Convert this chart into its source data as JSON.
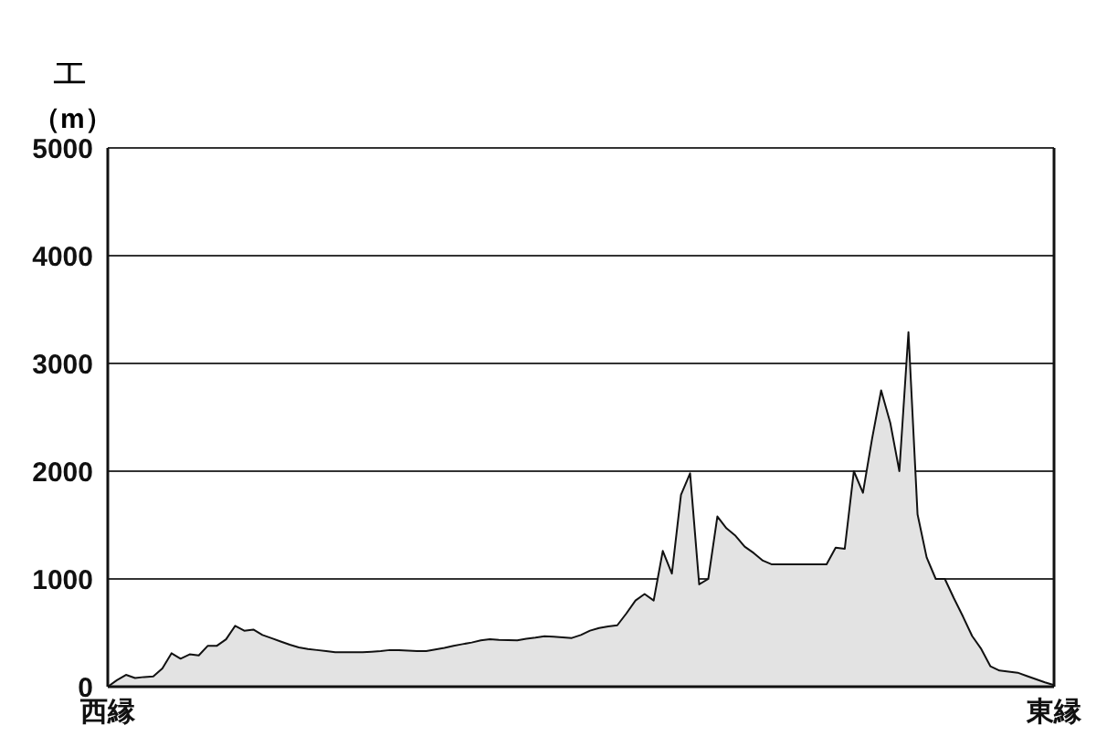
{
  "chart_data": {
    "type": "area",
    "title": "エ",
    "ylabel": "（m）",
    "categories": [
      "西縁",
      null,
      null,
      null,
      null,
      null,
      null,
      null,
      null,
      null,
      null,
      null,
      null,
      null,
      null,
      null,
      null,
      null,
      null,
      null,
      null,
      null,
      null,
      null,
      null,
      null,
      null,
      null,
      null,
      null,
      null,
      null,
      null,
      null,
      null,
      null,
      null,
      null,
      null,
      null,
      null,
      null,
      null,
      null,
      null,
      null,
      null,
      null,
      null,
      null,
      null,
      null,
      null,
      null,
      null,
      null,
      null,
      null,
      null,
      null,
      null,
      null,
      null,
      null,
      null,
      null,
      null,
      null,
      null,
      null,
      null,
      null,
      null,
      null,
      null,
      null,
      null,
      null,
      null,
      null,
      null,
      null,
      null,
      null,
      null,
      null,
      null,
      null,
      null,
      null,
      null,
      null,
      null,
      null,
      null,
      null,
      null,
      null,
      null,
      null,
      null,
      null,
      null,
      null,
      "東縁"
    ],
    "series": [
      {
        "color": "#e3e3e3",
        "values": [
          0,
          60,
          110,
          80,
          90,
          95,
          170,
          310,
          260,
          300,
          290,
          380,
          380,
          440,
          565,
          520,
          530,
          480,
          450,
          420,
          390,
          365,
          350,
          340,
          330,
          320,
          320,
          320,
          320,
          325,
          330,
          340,
          340,
          335,
          330,
          330,
          345,
          360,
          380,
          395,
          410,
          430,
          440,
          435,
          432,
          430,
          445,
          455,
          468,
          465,
          458,
          452,
          480,
          520,
          545,
          560,
          570,
          680,
          800,
          860,
          800,
          1260,
          1050,
          1780,
          1980,
          950,
          1000,
          1580,
          1470,
          1400,
          1300,
          1240,
          1170,
          1135,
          1135,
          1135,
          1135,
          1135,
          1135,
          1135,
          1290,
          1280,
          2000,
          1800,
          2300,
          2750,
          2450,
          2000,
          3290,
          1600,
          1200,
          1000,
          1000,
          820,
          650,
          470,
          350,
          190,
          150,
          140,
          130,
          100,
          70,
          40,
          15
        ]
      }
    ],
    "ylim": [
      0,
      5000
    ],
    "yticks": [
      0,
      1000,
      2000,
      3000,
      4000,
      5000
    ],
    "grid": "y"
  }
}
